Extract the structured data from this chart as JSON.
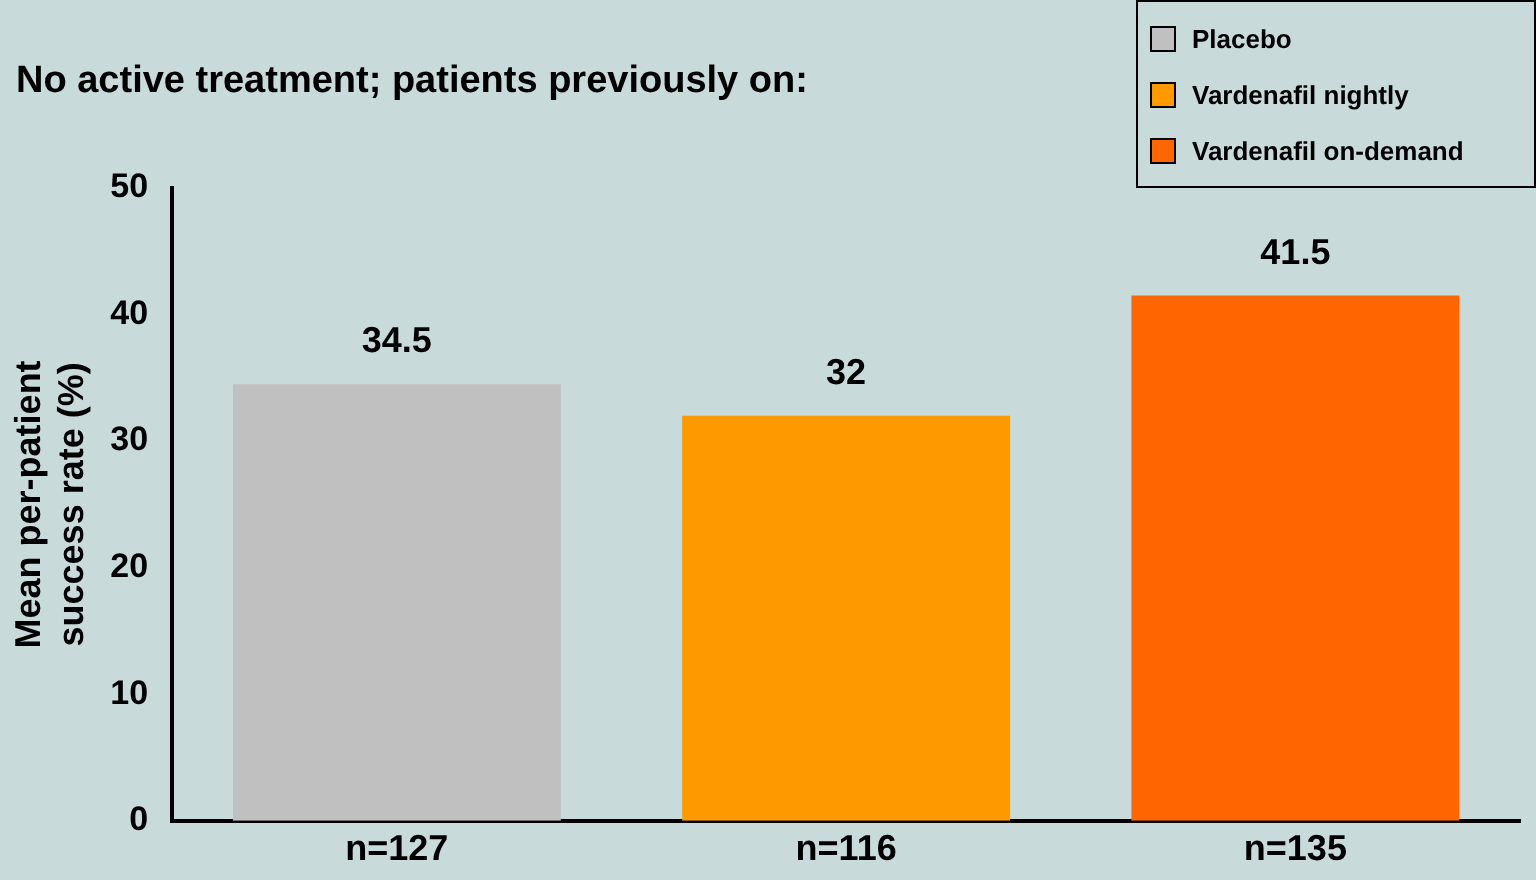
{
  "chart_data": {
    "type": "bar",
    "title": "No active treatment; patients previously on:",
    "ylabel": "Mean per-patient success rate (%)",
    "categories": [
      "n=127",
      "n=116",
      "n=135"
    ],
    "series": [
      {
        "name": "Placebo",
        "color": "#c0c0c0",
        "values": [
          34.5,
          null,
          null
        ]
      },
      {
        "name": "Vardenafil nightly",
        "color": "#ff9900",
        "values": [
          null,
          32,
          null
        ]
      },
      {
        "name": "Vardenafil on-demand",
        "color": "#ff6600",
        "values": [
          null,
          null,
          41.5
        ]
      }
    ],
    "ylim": [
      0,
      50
    ],
    "yticks": [
      0,
      10,
      20,
      30,
      40,
      50
    ],
    "grid": false,
    "legend": "top right",
    "data_labels": true
  }
}
